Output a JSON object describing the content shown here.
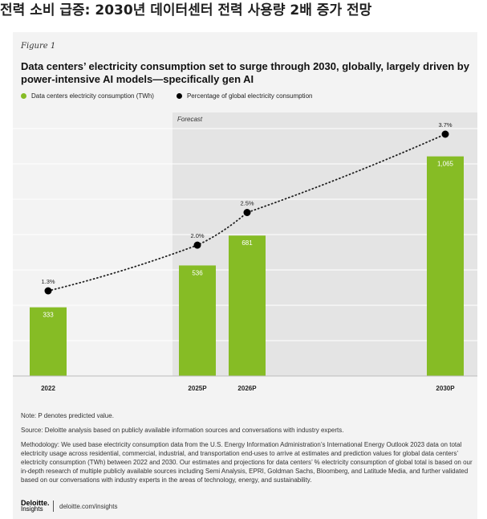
{
  "page": {
    "title": "전력 소비 급증: 2030년 데이터센터 전력 사용량 2배 증가 전망"
  },
  "figure": {
    "label": "Figure 1",
    "title": "Data centers’ electricity consumption set to surge through 2030, globally, largely driven by power-intensive AI models—specifically gen AI"
  },
  "colors": {
    "bar": "#86bc25",
    "dot": "#000000",
    "forecast_bg": "#e4e4e4"
  },
  "chart_data": {
    "type": "bar",
    "categories": [
      "2022",
      "2025P",
      "2026P",
      "2030P"
    ],
    "forecast_label": "Forecast",
    "forecast_from_category": "2025P",
    "ylim": [
      0,
      1200
    ],
    "series": [
      {
        "name": "Data centers electricity consumption (TWh)",
        "type": "bar",
        "values": [
          333,
          536,
          681,
          1065
        ],
        "labels": [
          "333",
          "536",
          "681",
          "1,065"
        ]
      },
      {
        "name": "Percentage of global electricity consumption",
        "type": "scatter",
        "values": [
          1.3,
          2.0,
          2.5,
          3.7
        ],
        "labels": [
          "1.3%",
          "2.0%",
          "2.5%",
          "3.7%"
        ]
      }
    ],
    "legend": [
      "Data centers electricity consumption (TWh)",
      "Percentage of global electricity consumption"
    ],
    "grid": true,
    "trendline": "dotted"
  },
  "notes": {
    "note": "Note: P denotes predicted value.",
    "source": "Source: Deloitte analysis based on publicly available information sources and conversations with industry experts.",
    "methodology": "Methodology: We used base electricity consumption data from the U.S. Energy Information Administration’s International Energy Outlook 2023 data on total electricity usage across residential, commercial, industrial, and transportation end-uses to arrive at estimates and prediction values for global data centers’ electricity consumption (TWh) between 2022 and 2030. Our estimates and projections for data centers’ % electricity consumption of global total is based on our in-depth research of multiple publicly available sources including Semi Analysis, EPRI, Goldman Sachs, Bloomberg, and Latitude Media, and further validated based on our conversations with industry experts in the areas of technology, energy, and sustainability."
  },
  "footer": {
    "logo_main": "Deloitte.",
    "logo_sub": "Insights",
    "url": "deloitte.com/insights"
  }
}
